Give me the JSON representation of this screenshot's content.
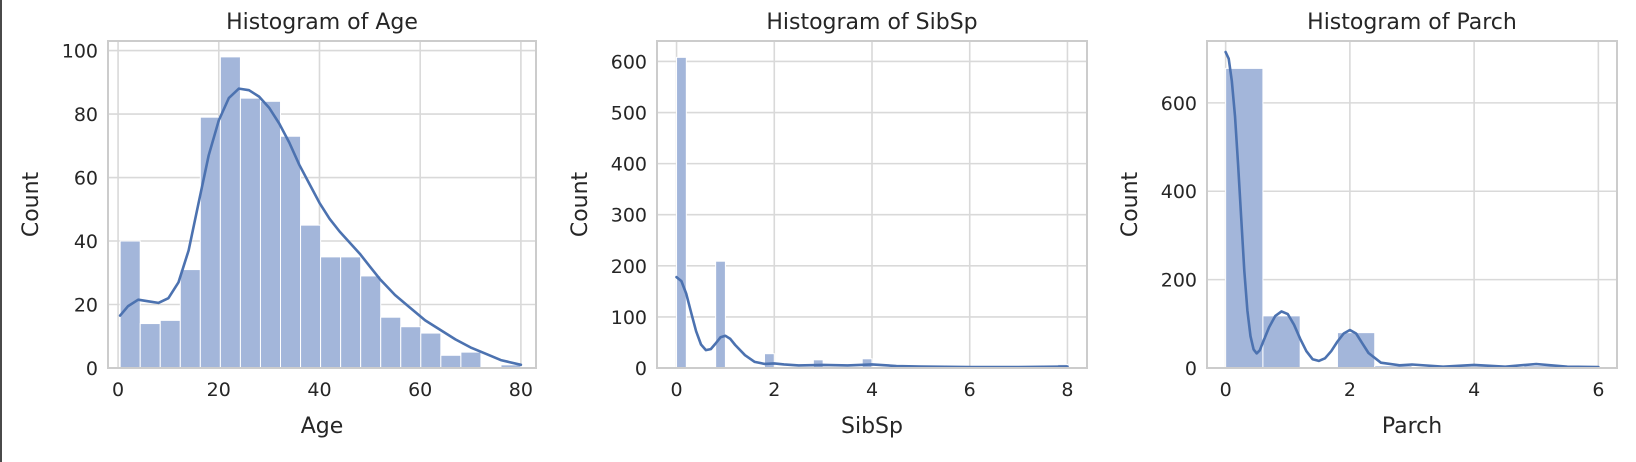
{
  "style": {
    "bar_fill": "#a3b6da",
    "bar_stroke": "#ffffff",
    "kde_color": "#4c72b0",
    "grid_color": "#d9d9d9",
    "spine_color": "#cccccc",
    "background": "#ffffff"
  },
  "chart_data": [
    {
      "type": "histogram",
      "title": "Histogram of Age",
      "xlabel": "Age",
      "ylabel": "Count",
      "xlim": [
        -2,
        83
      ],
      "ylim": [
        0,
        103
      ],
      "xticks": [
        0,
        20,
        40,
        60,
        80
      ],
      "yticks": [
        0,
        20,
        40,
        60,
        80,
        100
      ],
      "grid": true,
      "bins": [
        {
          "x0": 0.42,
          "x1": 4.4,
          "count": 40
        },
        {
          "x0": 4.4,
          "x1": 8.38,
          "count": 14
        },
        {
          "x0": 8.38,
          "x1": 12.36,
          "count": 15
        },
        {
          "x0": 12.36,
          "x1": 16.34,
          "count": 31
        },
        {
          "x0": 16.34,
          "x1": 20.32,
          "count": 79
        },
        {
          "x0": 20.32,
          "x1": 24.3,
          "count": 98
        },
        {
          "x0": 24.3,
          "x1": 28.28,
          "count": 85
        },
        {
          "x0": 28.28,
          "x1": 32.26,
          "count": 84
        },
        {
          "x0": 32.26,
          "x1": 36.24,
          "count": 73
        },
        {
          "x0": 36.24,
          "x1": 40.22,
          "count": 45
        },
        {
          "x0": 40.22,
          "x1": 44.2,
          "count": 35
        },
        {
          "x0": 44.2,
          "x1": 48.18,
          "count": 35
        },
        {
          "x0": 48.18,
          "x1": 52.16,
          "count": 29
        },
        {
          "x0": 52.16,
          "x1": 56.14,
          "count": 16
        },
        {
          "x0": 56.14,
          "x1": 60.12,
          "count": 13
        },
        {
          "x0": 60.12,
          "x1": 64.1,
          "count": 11
        },
        {
          "x0": 64.1,
          "x1": 68.08,
          "count": 4
        },
        {
          "x0": 68.08,
          "x1": 72.06,
          "count": 5
        },
        {
          "x0": 72.06,
          "x1": 76.04,
          "count": 0
        },
        {
          "x0": 76.04,
          "x1": 80.0,
          "count": 1
        }
      ],
      "kde": {
        "x": [
          0.4,
          2,
          4,
          6,
          8,
          10,
          12,
          14,
          16,
          18,
          20,
          22,
          24,
          26,
          28,
          30,
          32,
          34,
          36,
          38,
          40,
          42,
          44,
          46,
          48,
          50,
          52,
          55,
          58,
          61,
          64,
          67,
          70,
          73,
          76,
          80
        ],
        "y": [
          16.5,
          19.5,
          21.5,
          21,
          20.5,
          22,
          27,
          37,
          52,
          67,
          78,
          85,
          88,
          87.5,
          85.5,
          82,
          77,
          71,
          64,
          58,
          52,
          47,
          43,
          39.5,
          36,
          32,
          28,
          23,
          19,
          15,
          12,
          9,
          6.5,
          4.5,
          2.5,
          1
        ]
      }
    },
    {
      "type": "histogram",
      "title": "Histogram of SibSp",
      "xlabel": "SibSp",
      "ylabel": "Count",
      "xlim": [
        -0.4,
        8.4
      ],
      "ylim": [
        0,
        640
      ],
      "xticks": [
        0,
        2,
        4,
        6,
        8
      ],
      "yticks": [
        0,
        100,
        200,
        300,
        400,
        500,
        600
      ],
      "grid": true,
      "bins": [
        {
          "x0": 0.0,
          "x1": 0.2,
          "count": 608
        },
        {
          "x0": 0.8,
          "x1": 1.0,
          "count": 209
        },
        {
          "x0": 1.8,
          "x1": 2.0,
          "count": 28
        },
        {
          "x0": 2.8,
          "x1": 3.0,
          "count": 16
        },
        {
          "x0": 3.8,
          "x1": 4.0,
          "count": 18
        },
        {
          "x0": 4.8,
          "x1": 5.0,
          "count": 5
        },
        {
          "x0": 7.8,
          "x1": 8.0,
          "count": 7
        }
      ],
      "kde": {
        "x": [
          0,
          0.1,
          0.2,
          0.3,
          0.4,
          0.5,
          0.6,
          0.7,
          0.8,
          0.9,
          1.0,
          1.1,
          1.2,
          1.4,
          1.6,
          1.8,
          2.0,
          2.2,
          2.5,
          3.0,
          3.5,
          4.0,
          4.5,
          5.0,
          6.0,
          7.0,
          8.0
        ],
        "y": [
          178,
          170,
          145,
          108,
          72,
          46,
          35,
          37,
          48,
          60,
          63,
          57,
          45,
          25,
          12,
          8,
          9,
          7,
          5,
          6,
          5,
          7,
          4,
          3,
          2,
          2,
          3
        ]
      }
    },
    {
      "type": "histogram",
      "title": "Histogram of Parch",
      "xlabel": "Parch",
      "ylabel": "Count",
      "xlim": [
        -0.3,
        6.3
      ],
      "ylim": [
        0,
        740
      ],
      "xticks": [
        0,
        2,
        4,
        6
      ],
      "yticks": [
        0,
        200,
        400,
        600
      ],
      "grid": true,
      "bins": [
        {
          "x0": 0.0,
          "x1": 0.6,
          "count": 678
        },
        {
          "x0": 0.6,
          "x1": 1.2,
          "count": 118
        },
        {
          "x0": 1.2,
          "x1": 1.8,
          "count": 0
        },
        {
          "x0": 1.8,
          "x1": 2.4,
          "count": 80
        },
        {
          "x0": 2.4,
          "x1": 3.0,
          "count": 5
        },
        {
          "x0": 3.6,
          "x1": 4.2,
          "count": 4
        },
        {
          "x0": 4.8,
          "x1": 5.4,
          "count": 5
        },
        {
          "x0": 5.4,
          "x1": 6.0,
          "count": 1
        }
      ],
      "kde": {
        "x": [
          0,
          0.05,
          0.1,
          0.15,
          0.2,
          0.25,
          0.3,
          0.35,
          0.4,
          0.45,
          0.5,
          0.55,
          0.6,
          0.7,
          0.8,
          0.9,
          1.0,
          1.1,
          1.2,
          1.3,
          1.4,
          1.5,
          1.6,
          1.7,
          1.8,
          1.9,
          2.0,
          2.1,
          2.2,
          2.3,
          2.5,
          2.8,
          3.0,
          3.5,
          4.0,
          4.5,
          5.0,
          5.5,
          6.0
        ],
        "y": [
          715,
          700,
          650,
          570,
          460,
          340,
          220,
          130,
          72,
          42,
          33,
          40,
          58,
          92,
          118,
          128,
          122,
          98,
          66,
          38,
          20,
          16,
          22,
          38,
          60,
          78,
          86,
          78,
          56,
          34,
          12,
          6,
          8,
          3,
          7,
          3,
          9,
          3,
          2
        ]
      }
    }
  ]
}
